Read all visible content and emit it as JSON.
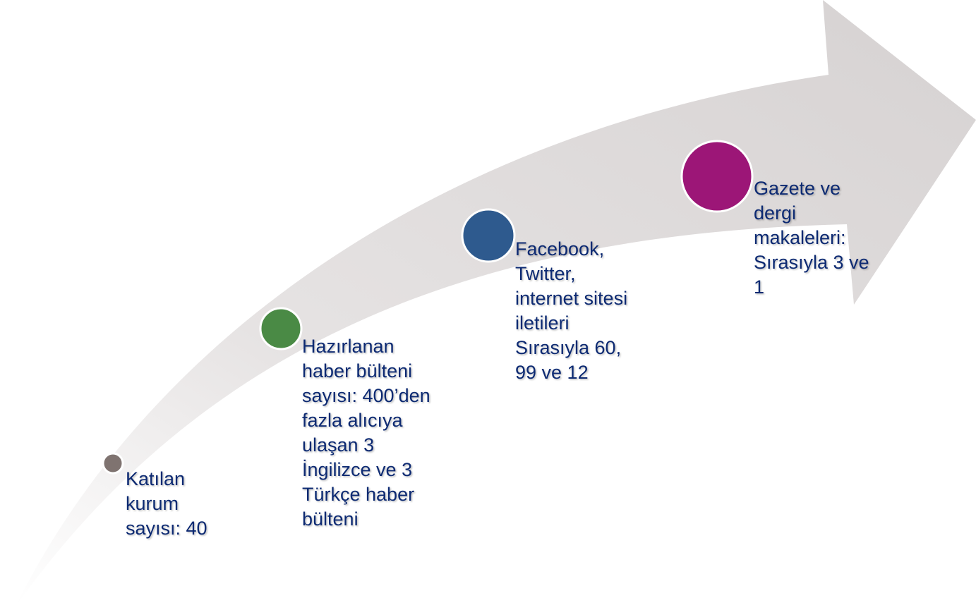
{
  "steps": [
    {
      "lines": [
        "Katılan",
        "kurum",
        "sayısı: 40"
      ]
    },
    {
      "lines": [
        "Hazırlanan",
        "haber bülteni",
        "sayısı: 400’den",
        "fazla alıcıya",
        "ulaşan 3",
        "İngilizce ve 3",
        "Türkçe haber",
        "bülteni"
      ]
    },
    {
      "lines": [
        "Facebook,",
        "Twitter,",
        "internet sitesi",
        "iletileri",
        "Sırasıyla 60,",
        "99 ve 12"
      ]
    },
    {
      "lines": [
        "Gazete ve",
        "dergi",
        "makaleleri:",
        "Sırasıyla 3 ve",
        "1"
      ]
    }
  ]
}
